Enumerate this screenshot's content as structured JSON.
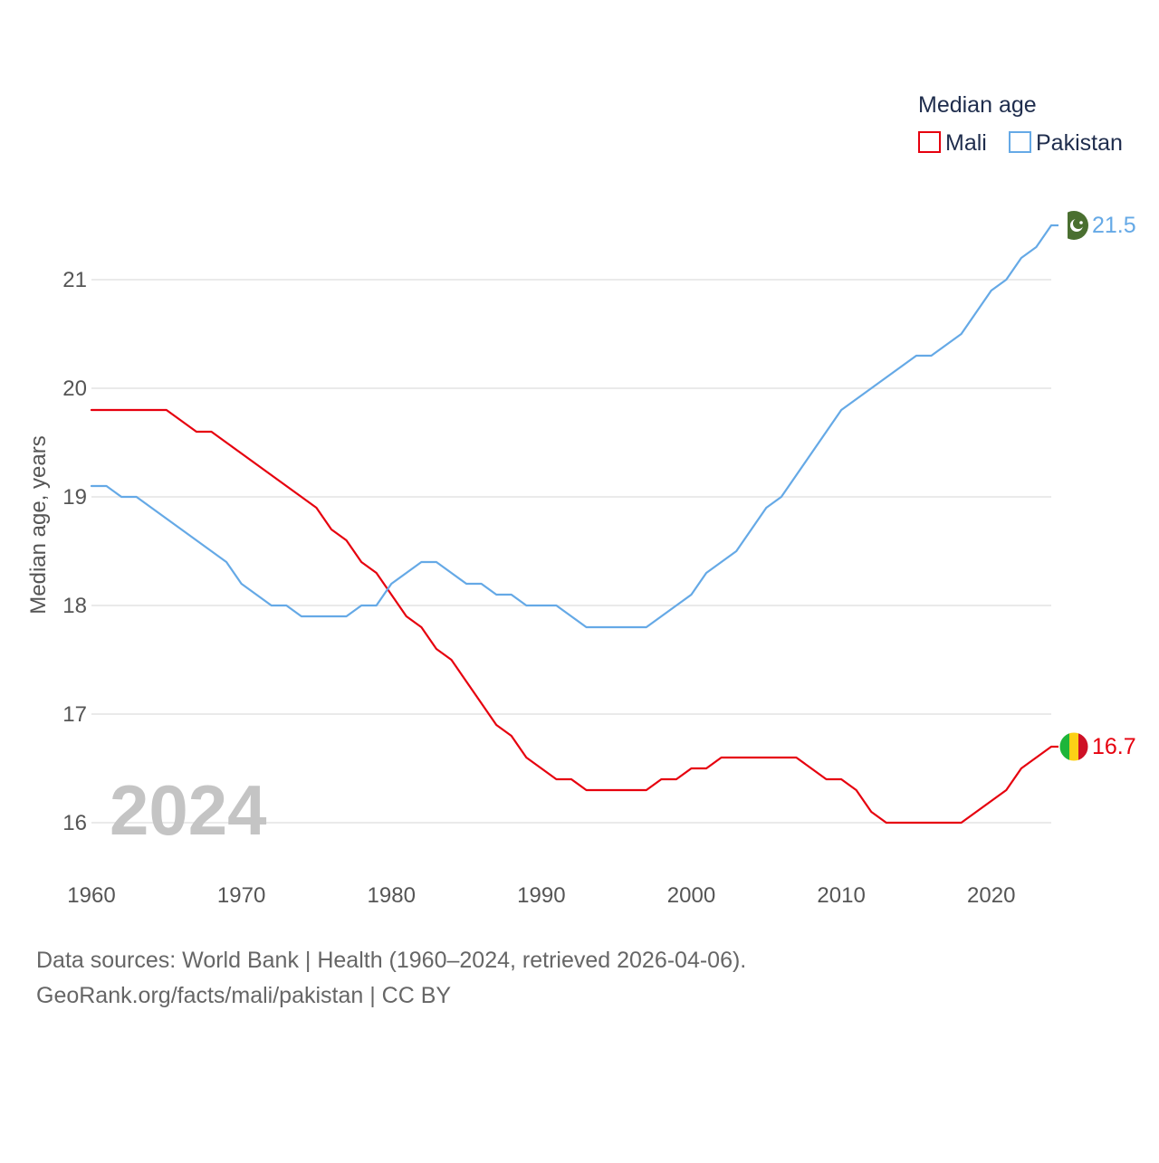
{
  "chart_data": {
    "type": "line",
    "title": "",
    "xlabel": "",
    "ylabel": "Median age, years",
    "xlim": [
      1960,
      2024
    ],
    "ylim": [
      15.6,
      21.8
    ],
    "x_ticks": [
      1960,
      1970,
      1980,
      1990,
      2000,
      2010,
      2020
    ],
    "y_ticks": [
      16,
      17,
      18,
      19,
      20,
      21
    ],
    "grid": true,
    "legend": {
      "title": "Median age",
      "position": "top-right"
    },
    "year_overlay": "2024",
    "x": [
      1960,
      1961,
      1962,
      1963,
      1964,
      1965,
      1966,
      1967,
      1968,
      1969,
      1970,
      1971,
      1972,
      1973,
      1974,
      1975,
      1976,
      1977,
      1978,
      1979,
      1980,
      1981,
      1982,
      1983,
      1984,
      1985,
      1986,
      1987,
      1988,
      1989,
      1990,
      1991,
      1992,
      1993,
      1994,
      1995,
      1996,
      1997,
      1998,
      1999,
      2000,
      2001,
      2002,
      2003,
      2004,
      2005,
      2006,
      2007,
      2008,
      2009,
      2010,
      2011,
      2012,
      2013,
      2014,
      2015,
      2016,
      2017,
      2018,
      2019,
      2020,
      2021,
      2022,
      2023,
      2024
    ],
    "series": [
      {
        "name": "Mali",
        "color": "#e6000e",
        "end_label": "16.7",
        "flag_icon": "mali-flag-icon",
        "values": [
          19.8,
          19.8,
          19.8,
          19.8,
          19.8,
          19.8,
          19.7,
          19.6,
          19.6,
          19.5,
          19.4,
          19.3,
          19.2,
          19.1,
          19.0,
          18.9,
          18.7,
          18.6,
          18.4,
          18.3,
          18.1,
          17.9,
          17.8,
          17.6,
          17.5,
          17.3,
          17.1,
          16.9,
          16.8,
          16.6,
          16.5,
          16.4,
          16.4,
          16.3,
          16.3,
          16.3,
          16.3,
          16.3,
          16.4,
          16.4,
          16.5,
          16.5,
          16.6,
          16.6,
          16.6,
          16.6,
          16.6,
          16.6,
          16.5,
          16.4,
          16.4,
          16.3,
          16.1,
          16.0,
          16.0,
          16.0,
          16.0,
          16.0,
          16.0,
          16.1,
          16.2,
          16.3,
          16.5,
          16.6,
          16.7
        ]
      },
      {
        "name": "Pakistan",
        "color": "#65a9e6",
        "end_label": "21.5",
        "flag_icon": "pakistan-flag-icon",
        "values": [
          19.1,
          19.1,
          19.0,
          19.0,
          18.9,
          18.8,
          18.7,
          18.6,
          18.5,
          18.4,
          18.2,
          18.1,
          18.0,
          18.0,
          17.9,
          17.9,
          17.9,
          17.9,
          18.0,
          18.0,
          18.2,
          18.3,
          18.4,
          18.4,
          18.3,
          18.2,
          18.2,
          18.1,
          18.1,
          18.0,
          18.0,
          18.0,
          17.9,
          17.8,
          17.8,
          17.8,
          17.8,
          17.8,
          17.9,
          18.0,
          18.1,
          18.3,
          18.4,
          18.5,
          18.7,
          18.9,
          19.0,
          19.2,
          19.4,
          19.6,
          19.8,
          19.9,
          20.0,
          20.1,
          20.2,
          20.3,
          20.3,
          20.4,
          20.5,
          20.7,
          20.9,
          21.0,
          21.2,
          21.3,
          21.5
        ]
      }
    ],
    "footer": [
      "Data sources: World Bank | Health (1960–2024, retrieved 2026-04-06).",
      "GeoRank.org/facts/mali/pakistan | CC BY"
    ]
  }
}
